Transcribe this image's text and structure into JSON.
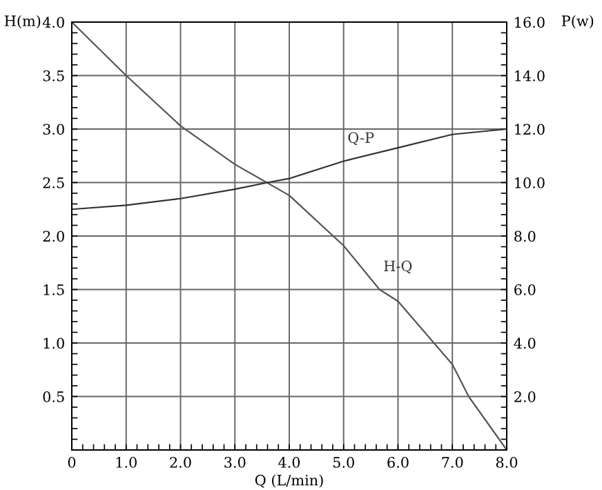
{
  "chart_data": {
    "type": "line",
    "xlabel": "Q (L/min)",
    "ylabel": "H(m)",
    "y2label": "P(w)",
    "series": [
      {
        "name": "H-Q",
        "color": "#555555",
        "x": [
          0,
          1,
          2,
          3,
          4,
          5,
          5.66,
          6,
          7,
          7.3,
          8
        ],
        "values": [
          4.0,
          3.5,
          3.03,
          2.67,
          2.38,
          1.91,
          1.5,
          1.39,
          0.8,
          0.5,
          0
        ]
      },
      {
        "name": "Q-P",
        "color": "#333333",
        "axis": "y2",
        "x": [
          0,
          1,
          2,
          3,
          3.6,
          4,
          5,
          6,
          7,
          8
        ],
        "values": [
          9.0,
          9.15,
          9.4,
          9.75,
          10.0,
          10.15,
          10.8,
          11.3,
          11.8,
          12.0
        ]
      }
    ],
    "xlim": [
      0,
      8
    ],
    "xticks": [
      0,
      {
        "value": 1,
        "label": "1.0"
      },
      {
        "value": 2,
        "label": "2.0"
      },
      {
        "value": 3,
        "label": "3.0"
      },
      {
        "value": 4,
        "label": "4.0"
      },
      {
        "value": 5,
        "label": "5.0"
      },
      {
        "value": 6,
        "label": "6.0"
      },
      {
        "value": 7,
        "label": "7.0"
      },
      {
        "value": 8,
        "label": "8.0"
      }
    ],
    "ylim": [
      0,
      4
    ],
    "yticks": [
      0.5,
      {
        "value": 1,
        "label": "1.0"
      },
      1.5,
      {
        "value": 2,
        "label": "2.0"
      },
      2.5,
      {
        "value": 3,
        "label": "3.0"
      },
      3.5,
      {
        "value": 4,
        "label": "4.0"
      }
    ],
    "y2lim": [
      0,
      16
    ],
    "y2ticks": [
      {
        "value": 2,
        "label": "2.0"
      },
      {
        "value": 4,
        "label": "4.0"
      },
      {
        "value": 6,
        "label": "6.0"
      },
      {
        "value": 8,
        "label": "8.0"
      },
      {
        "value": 10,
        "label": "10.0"
      },
      {
        "value": 12,
        "label": "12.0"
      },
      {
        "value": 14,
        "label": "14.0"
      },
      {
        "value": 16,
        "label": "16.0"
      }
    ],
    "grid": true,
    "legend": false,
    "marker": "none",
    "line_style": "solid"
  }
}
